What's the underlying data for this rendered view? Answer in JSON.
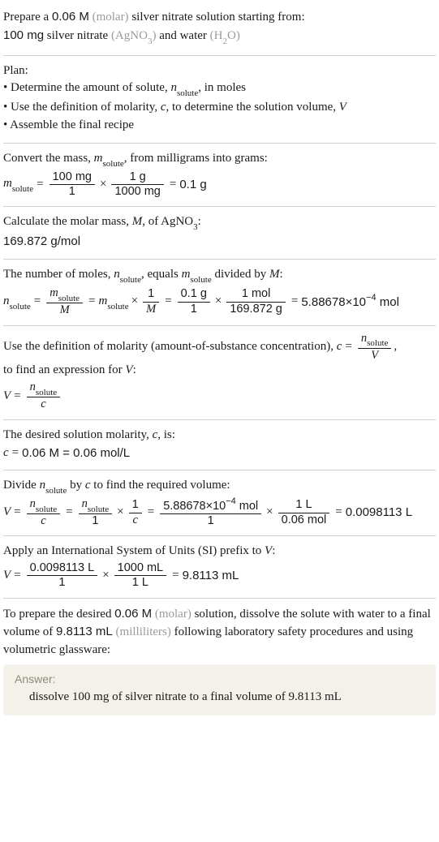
{
  "s1": {
    "prep_a": "Prepare a ",
    "conc_value": "0.06 M",
    "molar_label": " (molar) ",
    "prep_b": "silver nitrate solution starting from:",
    "mass_value": "100 mg",
    "reagent_name": " silver nitrate ",
    "agno3": "(AgNO",
    "agno3_sub": "3",
    "agno3_close": ")",
    "and_water": " and water ",
    "h2o_open": "(H",
    "h2o_sub": "2",
    "h2o_close": "O)"
  },
  "plan": {
    "title": "Plan:",
    "b1a": "• Determine the amount of solute, ",
    "b1c": ", in moles",
    "n": "n",
    "solute": "solute",
    "b2a": "• Use the definition of molarity, ",
    "b2c": ", to determine the solution volume, ",
    "c": "c",
    "V": "V",
    "b3": "• Assemble the final recipe"
  },
  "conv": {
    "text_a": "Convert the mass, ",
    "text_c": ", from milligrams into grams:",
    "m": "m",
    "solute": "solute",
    "num1": "100 mg",
    "den1": "1",
    "num2": "1 g",
    "den2": "1000 mg",
    "res": "0.1 g"
  },
  "molar_mass": {
    "text_a": "Calculate the molar mass, ",
    "M": "M",
    "text_b": ", of ",
    "agno3": "AgNO",
    "sub3": "3",
    "colon": ":",
    "value": "169.872 g/mol"
  },
  "nmoles": {
    "text_a": "The number of moles, ",
    "n": "n",
    "solute": "solute",
    "text_b": ", equals ",
    "m": "m",
    "text_c": " divided by ",
    "M": "M",
    "colon": ":",
    "one": "1",
    "num3": "0.1 g",
    "den3": "1",
    "num4": "1 mol",
    "den4": "169.872 g",
    "res": "5.88678",
    "exp": "−4",
    "ten": "10",
    "unit": " mol",
    "cross": "×"
  },
  "defc": {
    "text_a": "Use the definition of molarity (amount-of-substance concentration), ",
    "c": "c",
    "n": "n",
    "solute": "solute",
    "V": "V",
    "comma": ",",
    "text_b": "to find an expression for ",
    "colon": ":"
  },
  "cval": {
    "text_a": "The desired solution molarity, ",
    "c": "c",
    "text_b": ", is:",
    "eq": "0.06 M = 0.06 mol/L"
  },
  "vcalc": {
    "text_a": "Divide ",
    "n": "n",
    "solute": "solute",
    "text_b": " by ",
    "c": "c",
    "text_c": " to find the required volume:",
    "V": "V",
    "one": "1",
    "num_a": "5.88678",
    "exp": "−4",
    "ten": "10",
    "numunit": " mol",
    "den_a": "1",
    "num_b": "1 L",
    "den_b": "0.06 mol",
    "res": "0.0098113 L",
    "cross": "×"
  },
  "si": {
    "text_a": "Apply an International System of Units (SI) prefix to ",
    "V": "V",
    "colon": ":",
    "num1": "0.0098113 L",
    "den1": "1",
    "num2": "1000 mL",
    "den2": "1 L",
    "res": "9.8113 mL"
  },
  "final": {
    "text_a": "To prepare the desired ",
    "conc": "0.06 M",
    "molar_label": " (molar) ",
    "text_b": "solution, dissolve the solute with water to a final volume of ",
    "vol": "9.8113 mL",
    "ml_label": " (milliliters) ",
    "text_c": "following laboratory safety procedures and using volumetric glassware:"
  },
  "answer": {
    "label": "Answer:",
    "text": "dissolve 100 mg of silver nitrate to a final volume of 9.8113 mL"
  },
  "sym": {
    "eq": " = ",
    "times": " × "
  }
}
